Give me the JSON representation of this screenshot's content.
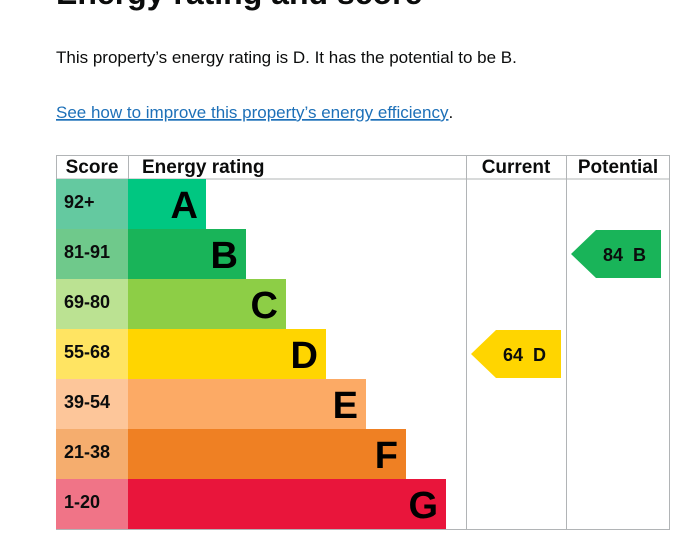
{
  "heading": "Energy rating and score",
  "intro": "This property’s energy rating is D. It has the potential to be B.",
  "link": "See how to improve this property’s energy efficiency",
  "link_end": ".",
  "table": {
    "headers": [
      "Score",
      "Energy rating",
      "Current",
      "Potential"
    ],
    "bands": [
      {
        "score": "92+",
        "letter": "A",
        "color": "#00c781",
        "score_color": "#64c9a0"
      },
      {
        "score": "81-91",
        "letter": "B",
        "color": "#19b459",
        "score_color": "#6fc98b"
      },
      {
        "score": "69-80",
        "letter": "C",
        "color": "#8dce46",
        "score_color": "#bbe292"
      },
      {
        "score": "55-68",
        "letter": "D",
        "color": "#ffd500",
        "score_color": "#ffe462"
      },
      {
        "score": "39-54",
        "letter": "E",
        "color": "#fcaa65",
        "score_color": "#fdc69a"
      },
      {
        "score": "21-38",
        "letter": "F",
        "color": "#ef8023",
        "score_color": "#f5ad6e"
      },
      {
        "score": "1-20",
        "letter": "G",
        "color": "#e9153b",
        "score_color": "#f07487"
      }
    ],
    "current": {
      "value": 64,
      "letter": "D"
    },
    "potential": {
      "value": 84,
      "letter": "B"
    }
  }
}
